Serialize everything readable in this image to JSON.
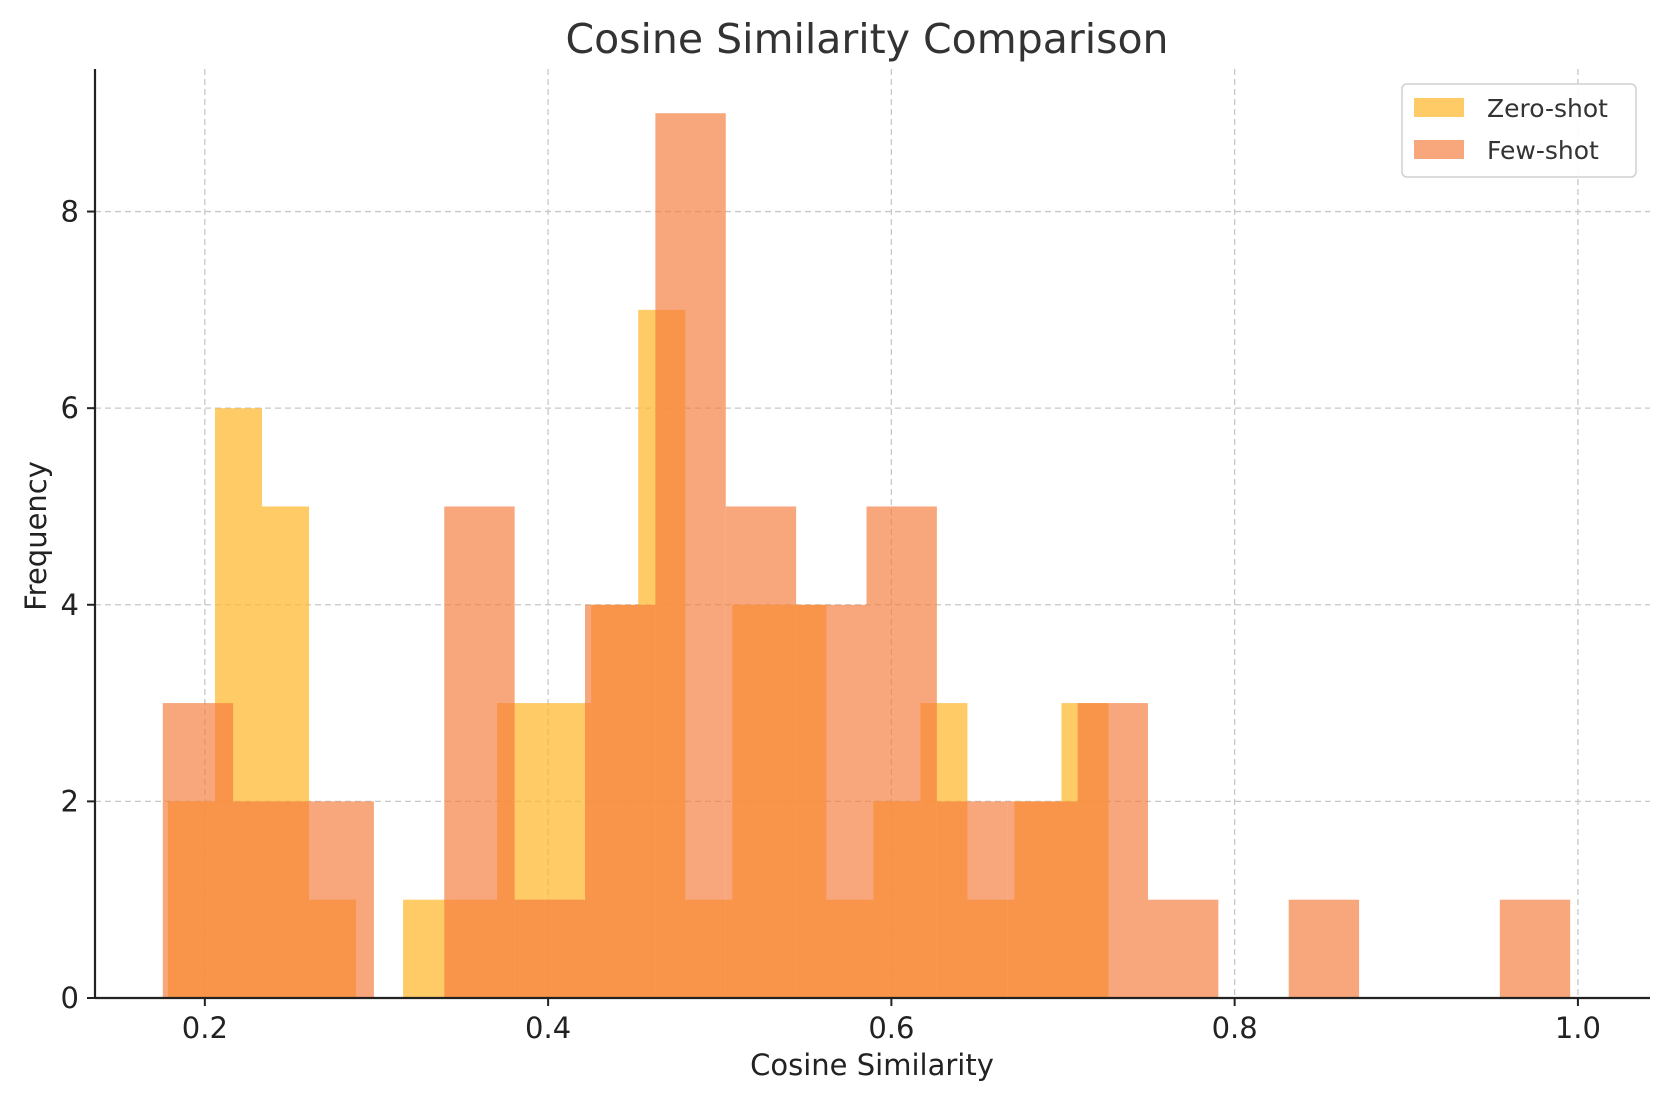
{
  "chart_data": {
    "type": "histogram",
    "title": "Cosine Similarity Comparison",
    "xlabel": "Cosine Similarity",
    "ylabel": "Frequency",
    "xlim": [
      0.136,
      1.042
    ],
    "ylim": [
      0,
      9.45
    ],
    "xticks": [
      "0.2",
      "0.4",
      "0.6",
      "0.8",
      "1.0"
    ],
    "xtick_values": [
      0.2,
      0.4,
      0.6,
      0.8,
      1.0
    ],
    "yticks": [
      "0",
      "2",
      "4",
      "6",
      "8"
    ],
    "ytick_values": [
      0,
      2,
      4,
      6,
      8
    ],
    "grid": true,
    "legend_position": "top-right",
    "series": [
      {
        "name": "Zero-shot",
        "color": "#FDB933",
        "opacity": 0.75,
        "bins": [
          {
            "x0": 0.1785,
            "x1": 0.2059,
            "count": 2
          },
          {
            "x0": 0.2059,
            "x1": 0.2333,
            "count": 6
          },
          {
            "x0": 0.2333,
            "x1": 0.2607,
            "count": 5
          },
          {
            "x0": 0.2607,
            "x1": 0.2881,
            "count": 1
          },
          {
            "x0": 0.2881,
            "x1": 0.3155,
            "count": 0
          },
          {
            "x0": 0.3155,
            "x1": 0.3429,
            "count": 1
          },
          {
            "x0": 0.3429,
            "x1": 0.3703,
            "count": 1
          },
          {
            "x0": 0.3703,
            "x1": 0.3977,
            "count": 3
          },
          {
            "x0": 0.3977,
            "x1": 0.4251,
            "count": 3
          },
          {
            "x0": 0.4251,
            "x1": 0.4525,
            "count": 4
          },
          {
            "x0": 0.4525,
            "x1": 0.4799,
            "count": 7
          },
          {
            "x0": 0.4799,
            "x1": 0.5073,
            "count": 1
          },
          {
            "x0": 0.5073,
            "x1": 0.5347,
            "count": 4
          },
          {
            "x0": 0.5347,
            "x1": 0.5621,
            "count": 4
          },
          {
            "x0": 0.5621,
            "x1": 0.5895,
            "count": 1
          },
          {
            "x0": 0.5895,
            "x1": 0.6169,
            "count": 2
          },
          {
            "x0": 0.6169,
            "x1": 0.6443,
            "count": 3
          },
          {
            "x0": 0.6443,
            "x1": 0.6717,
            "count": 1
          },
          {
            "x0": 0.6717,
            "x1": 0.6991,
            "count": 2
          },
          {
            "x0": 0.6991,
            "x1": 0.7265,
            "count": 3
          }
        ]
      },
      {
        "name": "Few-shot",
        "color": "#F47C3C",
        "opacity": 0.68,
        "bins": [
          {
            "x0": 0.1755,
            "x1": 0.2165,
            "count": 3
          },
          {
            "x0": 0.2165,
            "x1": 0.2575,
            "count": 2
          },
          {
            "x0": 0.2575,
            "x1": 0.2985,
            "count": 2
          },
          {
            "x0": 0.2985,
            "x1": 0.3395,
            "count": 0
          },
          {
            "x0": 0.3395,
            "x1": 0.3805,
            "count": 5
          },
          {
            "x0": 0.3805,
            "x1": 0.4215,
            "count": 1
          },
          {
            "x0": 0.4215,
            "x1": 0.4625,
            "count": 4
          },
          {
            "x0": 0.4625,
            "x1": 0.5035,
            "count": 9
          },
          {
            "x0": 0.5035,
            "x1": 0.5445,
            "count": 5
          },
          {
            "x0": 0.5445,
            "x1": 0.5855,
            "count": 4
          },
          {
            "x0": 0.5855,
            "x1": 0.6265,
            "count": 5
          },
          {
            "x0": 0.6265,
            "x1": 0.6675,
            "count": 2
          },
          {
            "x0": 0.6675,
            "x1": 0.7085,
            "count": 2
          },
          {
            "x0": 0.7085,
            "x1": 0.7495,
            "count": 3
          },
          {
            "x0": 0.7495,
            "x1": 0.7905,
            "count": 1
          },
          {
            "x0": 0.7905,
            "x1": 0.8315,
            "count": 0
          },
          {
            "x0": 0.8315,
            "x1": 0.8725,
            "count": 1
          },
          {
            "x0": 0.8725,
            "x1": 0.9135,
            "count": 0
          },
          {
            "x0": 0.9135,
            "x1": 0.9545,
            "count": 0
          },
          {
            "x0": 0.9545,
            "x1": 0.9955,
            "count": 1
          }
        ]
      }
    ]
  }
}
